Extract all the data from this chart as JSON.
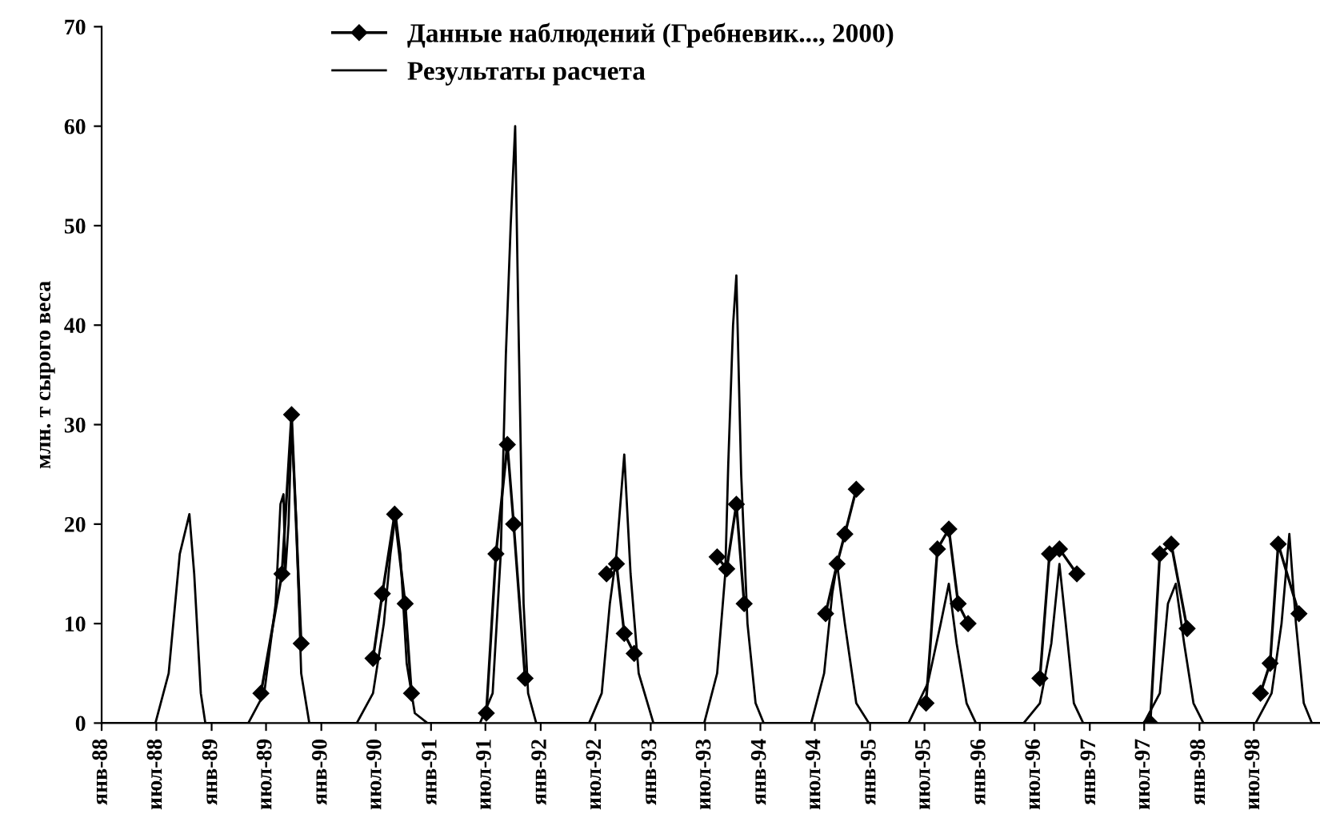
{
  "chart_data": {
    "type": "line",
    "ylabel": "млн. т сырого веса",
    "ylim": [
      0,
      70
    ],
    "yticks": [
      0,
      10,
      20,
      30,
      40,
      50,
      60,
      70
    ],
    "xlim": [
      "1988-01-01",
      "1999-02-06"
    ],
    "xticks": [
      {
        "value": "1988-01-01",
        "label": "янв-88"
      },
      {
        "value": "1988-07-01",
        "label": "июл-88"
      },
      {
        "value": "1989-01-01",
        "label": "янв-89"
      },
      {
        "value": "1989-07-01",
        "label": "июл-89"
      },
      {
        "value": "1990-01-01",
        "label": "янв-90"
      },
      {
        "value": "1990-07-01",
        "label": "июл-90"
      },
      {
        "value": "1991-01-01",
        "label": "янв-91"
      },
      {
        "value": "1991-07-01",
        "label": "июл-91"
      },
      {
        "value": "1992-01-01",
        "label": "янв-92"
      },
      {
        "value": "1992-07-01",
        "label": "июл-92"
      },
      {
        "value": "1993-01-01",
        "label": "янв-93"
      },
      {
        "value": "1993-07-01",
        "label": "июл-93"
      },
      {
        "value": "1994-01-01",
        "label": "янв-94"
      },
      {
        "value": "1994-07-01",
        "label": "июл-94"
      },
      {
        "value": "1995-01-01",
        "label": "янв-95"
      },
      {
        "value": "1995-07-01",
        "label": "июл-95"
      },
      {
        "value": "1996-01-01",
        "label": "янв-96"
      },
      {
        "value": "1996-07-01",
        "label": "июл-96"
      },
      {
        "value": "1997-01-01",
        "label": "янв-97"
      },
      {
        "value": "1997-07-01",
        "label": "июл-97"
      },
      {
        "value": "1998-01-01",
        "label": "янв-98"
      },
      {
        "value": "1998-07-01",
        "label": "июл-98"
      }
    ],
    "grid": false,
    "legend": "top",
    "series": [
      {
        "name": "Данные наблюдений (Гребневик..., 2000)",
        "color": "#000000",
        "marker": "diamond",
        "line_style": "solid",
        "x": [
          "1989-06-14",
          "1989-08-23",
          "1989-09-24",
          "1989-10-26",
          "1990-01-01",
          "1990-06-22",
          "1990-07-23",
          "1990-09-02",
          "1990-10-07",
          "1990-10-28",
          "1991-01-01",
          "1991-07-04",
          "1991-08-05",
          "1991-09-12",
          "1991-10-03",
          "1991-11-10",
          "1992-01-01",
          "1992-08-07",
          "1992-09-09",
          "1992-10-05",
          "1992-11-07",
          "1993-01-01",
          "1993-08-10",
          "1993-09-11",
          "1993-10-13",
          "1993-11-08",
          "1994-01-01",
          "1994-08-06",
          "1994-09-13",
          "1994-10-09",
          "1994-11-16",
          "1995-01-01",
          "1995-07-06",
          "1995-08-13",
          "1995-09-20",
          "1995-10-21",
          "1995-11-23",
          "1996-01-01",
          "1996-07-19",
          "1996-08-20",
          "1996-09-22",
          "1996-11-19",
          "1997-01-01",
          "1997-07-21",
          "1997-08-22",
          "1997-09-29",
          "1997-11-21",
          "1998-01-01",
          "1998-07-23",
          "1998-08-24",
          "1998-09-20",
          "1998-11-28"
        ],
        "values": [
          3,
          15,
          31,
          8,
          null,
          6.5,
          13,
          21,
          12,
          3,
          null,
          1,
          17,
          28,
          20,
          4.5,
          null,
          15,
          16,
          9,
          7,
          null,
          16.7,
          15.5,
          22,
          12,
          null,
          11,
          16,
          19,
          23.5,
          null,
          2,
          17.5,
          19.5,
          12,
          10,
          null,
          4.5,
          17,
          17.5,
          15,
          null,
          0,
          17,
          18,
          9.5,
          null,
          3,
          6,
          18,
          11
        ]
      },
      {
        "name": "Результаты расчета",
        "color": "#000000",
        "marker": "none",
        "line_style": "solid",
        "x": [
          "1988-01-01",
          "1988-06-28",
          "1988-08-11",
          "1988-09-17",
          "1988-10-19",
          "1988-11-04",
          "1988-11-26",
          "1988-12-11",
          "1989-05-03",
          "1989-06-25",
          "1989-08-02",
          "1989-08-18",
          "1989-08-28",
          "1989-09-03",
          "1989-09-14",
          "1989-09-24",
          "1989-10-10",
          "1989-10-26",
          "1989-11-22",
          "1990-04-29",
          "1990-06-22",
          "1990-07-28",
          "1990-08-19",
          "1990-09-05",
          "1990-09-21",
          "1990-10-12",
          "1990-11-08",
          "1990-12-20",
          "1991-06-13",
          "1991-07-25",
          "1991-08-21",
          "1991-09-07",
          "1991-09-23",
          "1991-10-08",
          "1991-10-19",
          "1991-11-05",
          "1991-11-20",
          "1991-12-17",
          "1992-06-10",
          "1992-07-22",
          "1992-08-18",
          "1992-09-09",
          "1992-10-05",
          "1992-10-26",
          "1992-11-22",
          "1993-01-10",
          "1993-06-28",
          "1993-08-10",
          "1993-09-06",
          "1993-09-16",
          "1993-10-02",
          "1993-10-13",
          "1993-10-29",
          "1993-11-19",
          "1993-12-16",
          "1994-01-12",
          "1994-06-19",
          "1994-08-01",
          "1994-08-28",
          "1994-09-13",
          "1994-10-09",
          "1994-11-16",
          "1994-12-28",
          "1995-05-09",
          "1995-07-12",
          "1995-08-24",
          "1995-09-20",
          "1995-10-16",
          "1995-11-18",
          "1995-12-19",
          "1996-05-26",
          "1996-07-19",
          "1996-08-26",
          "1996-09-22",
          "1996-10-13",
          "1996-11-09",
          "1996-12-10",
          "1997-06-30",
          "1997-08-22",
          "1997-09-18",
          "1997-10-14",
          "1997-11-11",
          "1997-12-12",
          "1998-01-14",
          "1998-07-07",
          "1998-08-29",
          "1998-10-01",
          "1998-10-27",
          "1998-11-18",
          "1998-12-14",
          "1999-01-10",
          "1999-02-06"
        ],
        "values": [
          0,
          0,
          5,
          17,
          21,
          15,
          3,
          0,
          0,
          3,
          12,
          22,
          23,
          15,
          20,
          30,
          20,
          5,
          0,
          0,
          3,
          10,
          17,
          21,
          17,
          6,
          1,
          0,
          0,
          3,
          17,
          37,
          50,
          60,
          40,
          12,
          3,
          0,
          0,
          3,
          12,
          17,
          27,
          15,
          5,
          0,
          0,
          5,
          15,
          26,
          40,
          45,
          25,
          10,
          2,
          0,
          0,
          5,
          13,
          16,
          10,
          2,
          0,
          0,
          4,
          10,
          14,
          8,
          2,
          0,
          0,
          2,
          8,
          16,
          10,
          2,
          0,
          0,
          3,
          12,
          14,
          8,
          2,
          0,
          0,
          3,
          10,
          19,
          10,
          2,
          0,
          0
        ]
      }
    ]
  }
}
